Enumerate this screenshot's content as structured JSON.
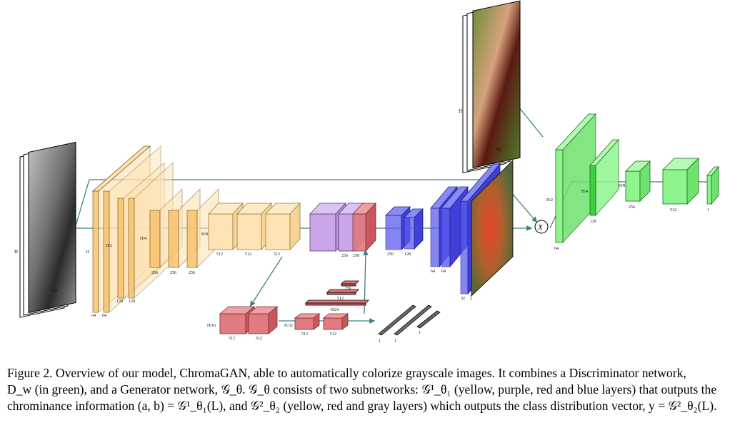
{
  "colors": {
    "yellow": "#f9c26b",
    "yellow_light": "#fde3b4",
    "purple": "#c9a6e8",
    "red": "#e07b80",
    "blue": "#5b5bf0",
    "green": "#8ef58e",
    "arrow": "#3f7f82",
    "gray_bar": "#6a6a6a"
  },
  "images": {
    "input_label": "grayscale input image",
    "output_label": "colorized output image",
    "chroma_label": "chrominance output",
    "axis_h": "H",
    "axis_w": "W"
  },
  "generator": {
    "dims": {
      "h": "H",
      "h2": "H/2",
      "h4": "H/4",
      "h8": "H/8",
      "h16": "H/16",
      "h32": "H/32"
    },
    "yellow_channels": [
      "64",
      "64",
      "128",
      "128",
      "256",
      "256",
      "256"
    ],
    "mid_channels": [
      "512",
      "512",
      "512",
      "256",
      "256"
    ],
    "blue_channels": [
      "256",
      "128",
      "64",
      "64",
      "32",
      "2"
    ],
    "red_channels": [
      "512",
      "512",
      "512",
      "512"
    ],
    "fc_units": [
      "1024",
      "512",
      "256"
    ],
    "gray_bars": [
      "1",
      "1",
      "1"
    ]
  },
  "discriminator": {
    "channels": [
      "64",
      "128",
      "256",
      "512",
      "1"
    ],
    "dims": [
      "H/2",
      "H/4",
      "H/8",
      "H/8",
      "H/8"
    ]
  },
  "fusion_symbol": "X",
  "caption": {
    "line1": "Figure 2. Overview of our model, ChromaGAN, able to automatically colorize grayscale images.  It combines a Discriminator network,",
    "line2": "D_w (in green), and a Generator network, 𝒢_θ. 𝒢_θ consists of two subnetworks: 𝒢¹_θ₁ (yellow, purple, red and blue layers) that outputs the",
    "line3": "chrominance information (a, b) = 𝒢¹_θ₁(L), and 𝒢²_θ₂ (yellow, red and gray layers) which outputs the class distribution vector, y = 𝒢²_θ₂(L)."
  }
}
